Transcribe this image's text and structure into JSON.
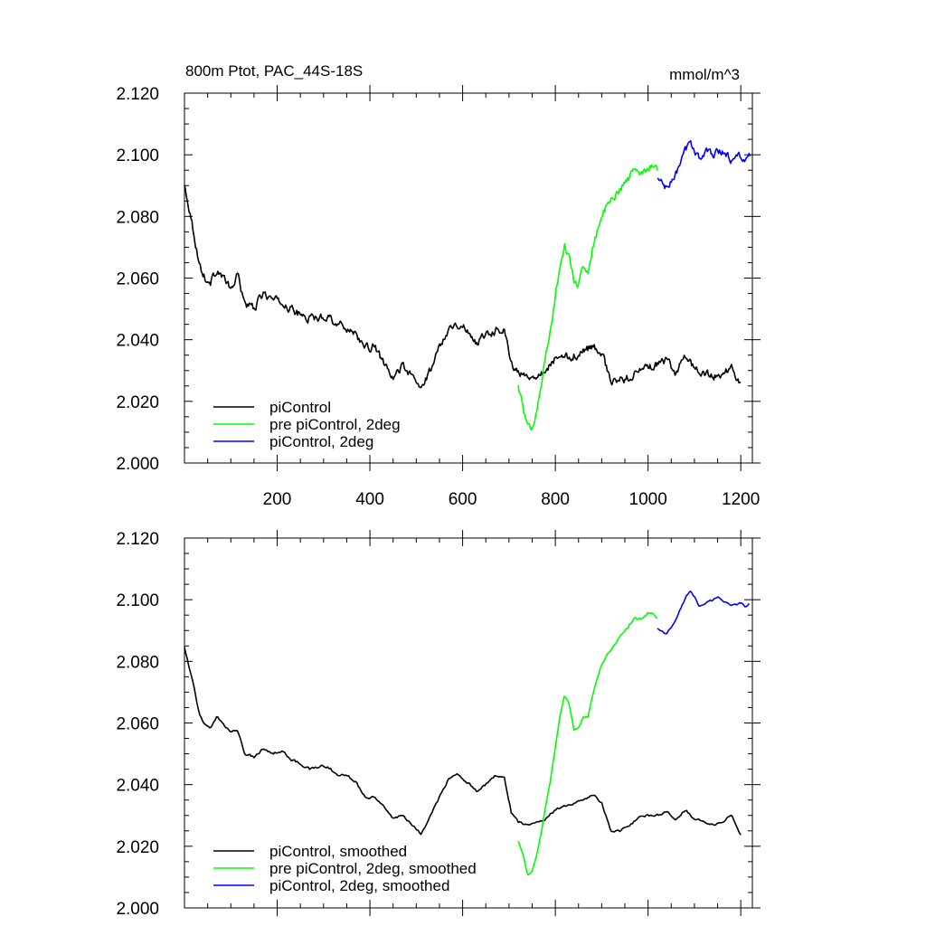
{
  "chart_data": [
    {
      "type": "line",
      "title": "800m Ptot, PAC_44S-18S",
      "units": "mmol/m^3",
      "xlim": [
        0,
        1225
      ],
      "ylim": [
        2.0,
        2.12
      ],
      "xticks": [
        "200",
        "400",
        "600",
        "800",
        "1000",
        "1200"
      ],
      "yticks": [
        "2.000",
        "2.020",
        "2.040",
        "2.060",
        "2.080",
        "2.100",
        "2.120"
      ],
      "legend_position": "bottom-left",
      "series": [
        {
          "name": "piControl",
          "color": "#000000",
          "x": [
            0,
            10,
            20,
            30,
            40,
            55,
            70,
            85,
            100,
            115,
            130,
            150,
            170,
            190,
            210,
            230,
            250,
            270,
            290,
            310,
            330,
            350,
            370,
            390,
            410,
            430,
            450,
            470,
            490,
            510,
            530,
            550,
            570,
            590,
            610,
            630,
            650,
            670,
            690,
            705,
            720,
            740,
            760,
            780,
            800,
            820,
            840,
            860,
            880,
            900,
            920,
            940,
            960,
            980,
            1000,
            1020,
            1040,
            1060,
            1080,
            1100,
            1120,
            1140,
            1160,
            1180,
            1200
          ],
          "y": [
            2.09,
            2.083,
            2.075,
            2.066,
            2.061,
            2.058,
            2.063,
            2.06,
            2.056,
            2.061,
            2.052,
            2.05,
            2.055,
            2.053,
            2.052,
            2.05,
            2.048,
            2.047,
            2.047,
            2.048,
            2.045,
            2.044,
            2.042,
            2.037,
            2.038,
            2.032,
            2.027,
            2.032,
            2.028,
            2.024,
            2.03,
            2.038,
            2.044,
            2.045,
            2.043,
            2.039,
            2.042,
            2.043,
            2.044,
            2.032,
            2.029,
            2.028,
            2.029,
            2.03,
            2.034,
            2.034,
            2.035,
            2.036,
            2.038,
            2.036,
            2.026,
            2.027,
            2.028,
            2.03,
            2.031,
            2.032,
            2.033,
            2.029,
            2.035,
            2.031,
            2.029,
            2.028,
            2.029,
            2.031,
            2.025
          ]
        },
        {
          "name": "pre piControl, 2deg",
          "color": "#00ff00",
          "x": [
            720,
            730,
            740,
            750,
            760,
            770,
            780,
            790,
            800,
            810,
            820,
            830,
            840,
            850,
            860,
            870,
            880,
            890,
            900,
            910,
            920,
            930,
            940,
            950,
            960,
            970,
            980,
            990,
            1000,
            1010,
            1020
          ],
          "y": [
            2.025,
            2.018,
            2.011,
            2.012,
            2.018,
            2.026,
            2.035,
            2.043,
            2.054,
            2.064,
            2.07,
            2.067,
            2.059,
            2.058,
            2.063,
            2.062,
            2.07,
            2.075,
            2.08,
            2.083,
            2.085,
            2.087,
            2.089,
            2.091,
            2.093,
            2.095,
            2.094,
            2.095,
            2.096,
            2.097,
            2.095
          ]
        },
        {
          "name": "piControl, 2deg",
          "color": "#0000ff",
          "x": [
            1020,
            1030,
            1040,
            1050,
            1060,
            1070,
            1080,
            1090,
            1100,
            1110,
            1120,
            1130,
            1140,
            1150,
            1160,
            1170,
            1180,
            1190,
            1200,
            1210,
            1220
          ],
          "y": [
            2.092,
            2.091,
            2.089,
            2.091,
            2.094,
            2.097,
            2.101,
            2.104,
            2.102,
            2.099,
            2.1,
            2.101,
            2.1,
            2.102,
            2.101,
            2.1,
            2.098,
            2.099,
            2.1,
            2.098,
            2.099
          ]
        }
      ]
    },
    {
      "type": "line",
      "xlim": [
        0,
        1225
      ],
      "ylim": [
        2.0,
        2.12
      ],
      "yticks": [
        "2.000",
        "2.020",
        "2.040",
        "2.060",
        "2.080",
        "2.100",
        "2.120"
      ],
      "legend_position": "bottom-left",
      "series": [
        {
          "name": "piControl, smoothed",
          "color": "#000000",
          "x": [
            0,
            10,
            20,
            30,
            40,
            55,
            70,
            85,
            100,
            115,
            130,
            150,
            170,
            190,
            210,
            230,
            250,
            270,
            290,
            310,
            330,
            350,
            370,
            390,
            410,
            430,
            450,
            470,
            490,
            510,
            530,
            550,
            570,
            590,
            610,
            630,
            650,
            670,
            690,
            705,
            720,
            740,
            760,
            780,
            800,
            820,
            840,
            860,
            880,
            900,
            920,
            940,
            960,
            980,
            1000,
            1020,
            1040,
            1060,
            1080,
            1100,
            1120,
            1140,
            1160,
            1180,
            1200
          ],
          "y": [
            2.085,
            2.078,
            2.072,
            2.064,
            2.06,
            2.058,
            2.062,
            2.059,
            2.057,
            2.058,
            2.05,
            2.049,
            2.052,
            2.05,
            2.051,
            2.048,
            2.047,
            2.045,
            2.046,
            2.046,
            2.043,
            2.043,
            2.041,
            2.036,
            2.036,
            2.033,
            2.029,
            2.03,
            2.027,
            2.024,
            2.03,
            2.036,
            2.042,
            2.043,
            2.041,
            2.038,
            2.04,
            2.043,
            2.042,
            2.031,
            2.028,
            2.027,
            2.028,
            2.029,
            2.032,
            2.033,
            2.034,
            2.035,
            2.037,
            2.034,
            2.025,
            2.025,
            2.027,
            2.029,
            2.03,
            2.03,
            2.031,
            2.029,
            2.032,
            2.029,
            2.028,
            2.027,
            2.028,
            2.03,
            2.024
          ]
        },
        {
          "name": "pre piControl, 2deg, smoothed",
          "color": "#00ff00",
          "x": [
            720,
            730,
            740,
            750,
            760,
            770,
            780,
            790,
            800,
            810,
            820,
            830,
            840,
            850,
            860,
            870,
            880,
            890,
            900,
            910,
            920,
            930,
            940,
            950,
            960,
            970,
            980,
            990,
            1000,
            1010,
            1020
          ],
          "y": [
            2.022,
            2.017,
            2.011,
            2.012,
            2.017,
            2.025,
            2.034,
            2.042,
            2.052,
            2.062,
            2.069,
            2.066,
            2.058,
            2.058,
            2.062,
            2.062,
            2.069,
            2.074,
            2.079,
            2.082,
            2.084,
            2.086,
            2.088,
            2.09,
            2.092,
            2.094,
            2.094,
            2.094,
            2.096,
            2.096,
            2.094
          ]
        },
        {
          "name": "piControl, 2deg, smoothed",
          "color": "#0000ff",
          "x": [
            1020,
            1030,
            1040,
            1050,
            1060,
            1070,
            1080,
            1090,
            1100,
            1110,
            1120,
            1130,
            1140,
            1150,
            1160,
            1170,
            1180,
            1190,
            1200,
            1210,
            1220
          ],
          "y": [
            2.091,
            2.09,
            2.089,
            2.091,
            2.094,
            2.097,
            2.1,
            2.103,
            2.101,
            2.098,
            2.099,
            2.1,
            2.1,
            2.101,
            2.1,
            2.099,
            2.098,
            2.098,
            2.099,
            2.098,
            2.099
          ]
        }
      ]
    }
  ]
}
